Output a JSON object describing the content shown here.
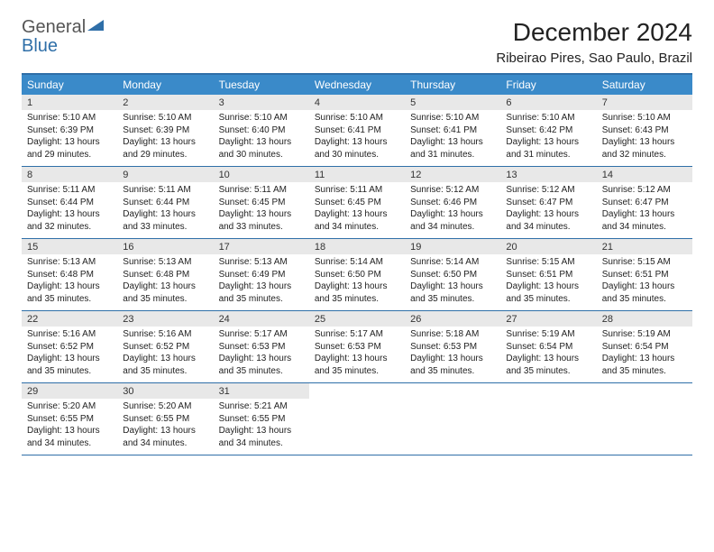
{
  "logo": {
    "line1": "General",
    "line2": "Blue"
  },
  "title": "December 2024",
  "subtitle": "Ribeirao Pires, Sao Paulo, Brazil",
  "colors": {
    "header_band": "#3a8ac9",
    "border": "#2f6fa8",
    "daynum_bg": "#e8e8e8",
    "logo_gray": "#555555",
    "logo_blue": "#2f6fa8"
  },
  "dow": [
    "Sunday",
    "Monday",
    "Tuesday",
    "Wednesday",
    "Thursday",
    "Friday",
    "Saturday"
  ],
  "weeks": [
    [
      {
        "n": "1",
        "sr": "5:10 AM",
        "ss": "6:39 PM",
        "dl": "13 hours and 29 minutes."
      },
      {
        "n": "2",
        "sr": "5:10 AM",
        "ss": "6:39 PM",
        "dl": "13 hours and 29 minutes."
      },
      {
        "n": "3",
        "sr": "5:10 AM",
        "ss": "6:40 PM",
        "dl": "13 hours and 30 minutes."
      },
      {
        "n": "4",
        "sr": "5:10 AM",
        "ss": "6:41 PM",
        "dl": "13 hours and 30 minutes."
      },
      {
        "n": "5",
        "sr": "5:10 AM",
        "ss": "6:41 PM",
        "dl": "13 hours and 31 minutes."
      },
      {
        "n": "6",
        "sr": "5:10 AM",
        "ss": "6:42 PM",
        "dl": "13 hours and 31 minutes."
      },
      {
        "n": "7",
        "sr": "5:10 AM",
        "ss": "6:43 PM",
        "dl": "13 hours and 32 minutes."
      }
    ],
    [
      {
        "n": "8",
        "sr": "5:11 AM",
        "ss": "6:44 PM",
        "dl": "13 hours and 32 minutes."
      },
      {
        "n": "9",
        "sr": "5:11 AM",
        "ss": "6:44 PM",
        "dl": "13 hours and 33 minutes."
      },
      {
        "n": "10",
        "sr": "5:11 AM",
        "ss": "6:45 PM",
        "dl": "13 hours and 33 minutes."
      },
      {
        "n": "11",
        "sr": "5:11 AM",
        "ss": "6:45 PM",
        "dl": "13 hours and 34 minutes."
      },
      {
        "n": "12",
        "sr": "5:12 AM",
        "ss": "6:46 PM",
        "dl": "13 hours and 34 minutes."
      },
      {
        "n": "13",
        "sr": "5:12 AM",
        "ss": "6:47 PM",
        "dl": "13 hours and 34 minutes."
      },
      {
        "n": "14",
        "sr": "5:12 AM",
        "ss": "6:47 PM",
        "dl": "13 hours and 34 minutes."
      }
    ],
    [
      {
        "n": "15",
        "sr": "5:13 AM",
        "ss": "6:48 PM",
        "dl": "13 hours and 35 minutes."
      },
      {
        "n": "16",
        "sr": "5:13 AM",
        "ss": "6:48 PM",
        "dl": "13 hours and 35 minutes."
      },
      {
        "n": "17",
        "sr": "5:13 AM",
        "ss": "6:49 PM",
        "dl": "13 hours and 35 minutes."
      },
      {
        "n": "18",
        "sr": "5:14 AM",
        "ss": "6:50 PM",
        "dl": "13 hours and 35 minutes."
      },
      {
        "n": "19",
        "sr": "5:14 AM",
        "ss": "6:50 PM",
        "dl": "13 hours and 35 minutes."
      },
      {
        "n": "20",
        "sr": "5:15 AM",
        "ss": "6:51 PM",
        "dl": "13 hours and 35 minutes."
      },
      {
        "n": "21",
        "sr": "5:15 AM",
        "ss": "6:51 PM",
        "dl": "13 hours and 35 minutes."
      }
    ],
    [
      {
        "n": "22",
        "sr": "5:16 AM",
        "ss": "6:52 PM",
        "dl": "13 hours and 35 minutes."
      },
      {
        "n": "23",
        "sr": "5:16 AM",
        "ss": "6:52 PM",
        "dl": "13 hours and 35 minutes."
      },
      {
        "n": "24",
        "sr": "5:17 AM",
        "ss": "6:53 PM",
        "dl": "13 hours and 35 minutes."
      },
      {
        "n": "25",
        "sr": "5:17 AM",
        "ss": "6:53 PM",
        "dl": "13 hours and 35 minutes."
      },
      {
        "n": "26",
        "sr": "5:18 AM",
        "ss": "6:53 PM",
        "dl": "13 hours and 35 minutes."
      },
      {
        "n": "27",
        "sr": "5:19 AM",
        "ss": "6:54 PM",
        "dl": "13 hours and 35 minutes."
      },
      {
        "n": "28",
        "sr": "5:19 AM",
        "ss": "6:54 PM",
        "dl": "13 hours and 35 minutes."
      }
    ],
    [
      {
        "n": "29",
        "sr": "5:20 AM",
        "ss": "6:55 PM",
        "dl": "13 hours and 34 minutes."
      },
      {
        "n": "30",
        "sr": "5:20 AM",
        "ss": "6:55 PM",
        "dl": "13 hours and 34 minutes."
      },
      {
        "n": "31",
        "sr": "5:21 AM",
        "ss": "6:55 PM",
        "dl": "13 hours and 34 minutes."
      },
      null,
      null,
      null,
      null
    ]
  ],
  "labels": {
    "sunrise": "Sunrise:",
    "sunset": "Sunset:",
    "daylight": "Daylight:"
  }
}
